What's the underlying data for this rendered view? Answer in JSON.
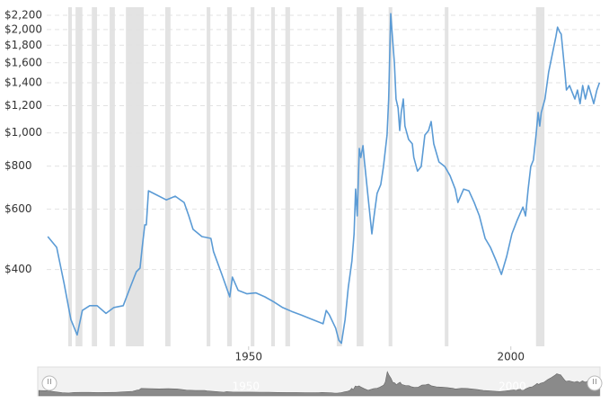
{
  "chart_data": {
    "type": "line",
    "log_y": true,
    "grid": true,
    "color": "#5b9bd5",
    "band_color": "#e3e3e3",
    "xlim": [
      1911.5,
      2017.0
    ],
    "ylim": [
      239,
      2323
    ],
    "xticks": [
      1950,
      2000
    ],
    "yticks": [
      {
        "value": 400,
        "label": "$400"
      },
      {
        "value": 600,
        "label": "$600"
      },
      {
        "value": 800,
        "label": "$800"
      },
      {
        "value": 1000,
        "label": "$1,000"
      },
      {
        "value": 1200,
        "label": "$1,200"
      },
      {
        "value": 1400,
        "label": "$1,400"
      },
      {
        "value": 1600,
        "label": "$1,600"
      },
      {
        "value": 1800,
        "label": "$1,800"
      },
      {
        "value": 2000,
        "label": "$2,000"
      },
      {
        "value": 2200,
        "label": "$2,200"
      }
    ],
    "bands": [
      [
        1915.6,
        1916.3
      ],
      [
        1917.0,
        1918.3
      ],
      [
        1920.1,
        1921.1
      ],
      [
        1923.5,
        1924.5
      ],
      [
        1926.6,
        1930.0
      ],
      [
        1934.1,
        1935.1
      ],
      [
        1942.0,
        1942.7
      ],
      [
        1945.9,
        1946.8
      ],
      [
        1950.4,
        1951.1
      ],
      [
        1954.3,
        1955.0
      ],
      [
        1957.0,
        1957.9
      ],
      [
        1966.8,
        1967.8
      ],
      [
        1970.6,
        1971.9
      ],
      [
        1976.7,
        1977.4
      ],
      [
        1987.4,
        1988.1
      ],
      [
        2004.8,
        2006.4
      ]
    ],
    "x": [
      1911.7,
      1913.4,
      1914.8,
      1916.1,
      1917.3,
      1918.3,
      1919.7,
      1921.1,
      1922.8,
      1924.3,
      1926.1,
      1927.4,
      1928.6,
      1929.3,
      1929.7,
      1930.2,
      1930.5,
      1930.9,
      1932.6,
      1934.3,
      1936.0,
      1937.7,
      1938.6,
      1939.4,
      1941.1,
      1942.8,
      1943.3,
      1944.9,
      1946.4,
      1946.9,
      1948.0,
      1949.7,
      1951.4,
      1953.1,
      1954.8,
      1956.5,
      1958.2,
      1960.0,
      1961.7,
      1964.2,
      1964.8,
      1965.4,
      1966.6,
      1967.2,
      1967.7,
      1968.4,
      1969.0,
      1969.7,
      1970.1,
      1970.4,
      1970.7,
      1971.1,
      1971.4,
      1971.8,
      1972.1,
      1972.8,
      1973.5,
      1973.8,
      1974.5,
      1975.2,
      1975.7,
      1976.4,
      1976.7,
      1977.1,
      1977.4,
      1977.8,
      1978.1,
      1978.5,
      1978.8,
      1979.1,
      1979.5,
      1979.8,
      1980.5,
      1981.2,
      1981.5,
      1982.2,
      1982.9,
      1983.6,
      1984.3,
      1984.8,
      1985.3,
      1986.3,
      1987.4,
      1988.4,
      1989.4,
      1989.9,
      1991.0,
      1992.0,
      1993.0,
      1994.0,
      1995.1,
      1996.1,
      1997.2,
      1998.2,
      1999.2,
      2000.2,
      2001.2,
      2002.3,
      2002.8,
      2003.3,
      2003.8,
      2004.3,
      2004.8,
      2005.2,
      2005.5,
      2005.8,
      2006.5,
      2007.2,
      2007.9,
      2008.6,
      2008.9,
      2009.3,
      2009.6,
      2010.3,
      2010.6,
      2011.2,
      2012.2,
      2012.7,
      2013.2,
      2013.7,
      2014.2,
      2014.8,
      2015.3,
      2015.8,
      2016.4,
      2016.9
    ],
    "values": [
      499,
      464,
      365,
      286,
      258,
      304,
      314,
      314,
      298,
      310,
      314,
      354,
      394,
      404,
      464,
      540,
      540,
      678,
      658,
      638,
      654,
      627,
      573,
      524,
      499,
      493,
      451,
      387,
      333,
      380,
      348,
      340,
      342,
      333,
      322,
      310,
      302,
      295,
      288,
      278,
      304,
      295,
      270,
      249,
      244,
      286,
      354,
      424,
      508,
      686,
      573,
      901,
      848,
      918,
      823,
      646,
      508,
      556,
      666,
      707,
      798,
      986,
      1255,
      2224,
      1914,
      1596,
      1255,
      1181,
      1016,
      1146,
      1255,
      1047,
      957,
      929,
      848,
      774,
      798,
      986,
      1016,
      1079,
      929,
      823,
      798,
      751,
      686,
      627,
      686,
      678,
      627,
      573,
      493,
      464,
      424,
      387,
      437,
      508,
      556,
      608,
      573,
      686,
      798,
      833,
      986,
      1146,
      1047,
      1146,
      1255,
      1503,
      1695,
      1914,
      2032,
      1970,
      1940,
      1503,
      1333,
      1374,
      1255,
      1333,
      1217,
      1374,
      1255,
      1374,
      1294,
      1217,
      1333,
      1400
    ]
  }
}
